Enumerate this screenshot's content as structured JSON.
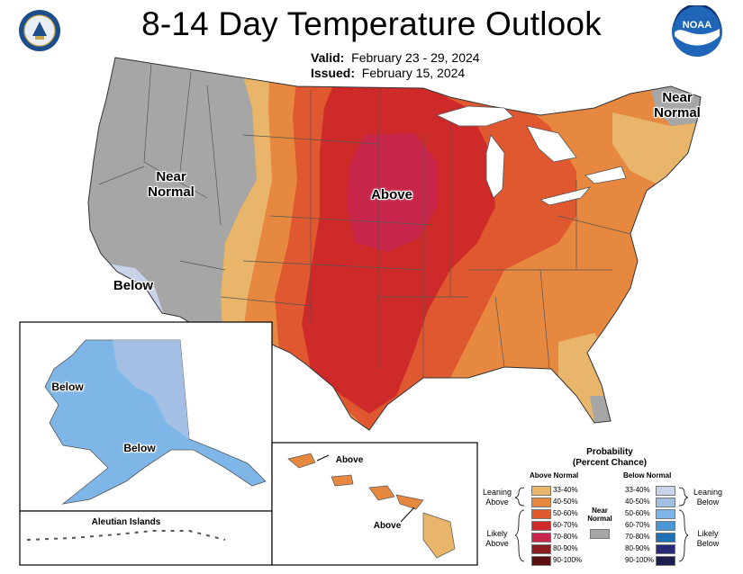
{
  "title": "8-14 Day Temperature Outlook",
  "valid_label": "Valid:",
  "valid_dates": "February 23 - 29, 2024",
  "issued_label": "Issued:",
  "issued_date": "February 15, 2024",
  "logos": {
    "left": "doc-seal-icon",
    "right": "noaa-logo-icon"
  },
  "map_labels": {
    "near_normal_west": "Near\nNormal",
    "near_normal_ne": "Near\nNormal",
    "above_central": "Above",
    "below_sw": "Below",
    "alaska_below_1": "Below",
    "alaska_below_2": "Below",
    "aleutian": "Aleutian Islands",
    "hawaii_above_1": "Above",
    "hawaii_above_2": "Above"
  },
  "legend": {
    "title": "Probability\n(Percent Chance)",
    "above_header": "Above Normal",
    "below_header": "Below Normal",
    "leaning_above": "Leaning\nAbove",
    "likely_above": "Likely\nAbove",
    "leaning_below": "Leaning\nBelow",
    "likely_below": "Likely\nBelow",
    "near_normal": "Near\nNormal",
    "near_normal_color": "#a6a6a6",
    "above": [
      {
        "label": "33-40%",
        "color": "#e8b56b"
      },
      {
        "label": "40-50%",
        "color": "#e6883f"
      },
      {
        "label": "50-60%",
        "color": "#e0582f"
      },
      {
        "label": "60-70%",
        "color": "#cf2a2a"
      },
      {
        "label": "70-80%",
        "color": "#c7264a"
      },
      {
        "label": "80-90%",
        "color": "#8a1e1e"
      },
      {
        "label": "90-100%",
        "color": "#5a1010"
      }
    ],
    "below": [
      {
        "label": "33-40%",
        "color": "#c9d3ea"
      },
      {
        "label": "40-50%",
        "color": "#a3c0e4"
      },
      {
        "label": "50-60%",
        "color": "#7fb6e8"
      },
      {
        "label": "60-70%",
        "color": "#4a97d6"
      },
      {
        "label": "70-80%",
        "color": "#1f6fb5"
      },
      {
        "label": "80-90%",
        "color": "#2a2a7a"
      },
      {
        "label": "90-100%",
        "color": "#1e1e4e"
      }
    ]
  }
}
